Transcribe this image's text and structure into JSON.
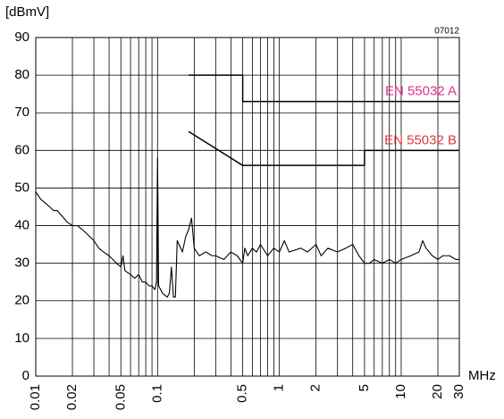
{
  "chart_data": {
    "type": "line",
    "xscale": "log",
    "y_label": "[dBmV]",
    "x_label": "MHz",
    "annotation": "07012",
    "xlim": [
      0.01,
      30
    ],
    "ylim": [
      0,
      90
    ],
    "yticks": [
      0,
      10,
      20,
      30,
      40,
      50,
      60,
      70,
      80,
      90
    ],
    "xticks": [
      0.01,
      0.02,
      0.05,
      0.1,
      0.5,
      1,
      2,
      5,
      10,
      20,
      30
    ],
    "xgrid": [
      0.01,
      0.02,
      0.03,
      0.04,
      0.05,
      0.06,
      0.07,
      0.08,
      0.09,
      0.1,
      0.2,
      0.3,
      0.4,
      0.5,
      0.6,
      0.7,
      0.8,
      0.9,
      1,
      2,
      3,
      4,
      5,
      6,
      7,
      8,
      9,
      10,
      20,
      30
    ],
    "grid": true,
    "series": [
      {
        "color": "#000000",
        "x": [
          0.01,
          0.011,
          0.012,
          0.013,
          0.014,
          0.015,
          0.017,
          0.018,
          0.02,
          0.022,
          0.024,
          0.026,
          0.03,
          0.033,
          0.036,
          0.04,
          0.043,
          0.046,
          0.05,
          0.052,
          0.054,
          0.06,
          0.065,
          0.07,
          0.075,
          0.08,
          0.085,
          0.09,
          0.095,
          0.098,
          0.1,
          0.102,
          0.11,
          0.12,
          0.125,
          0.13,
          0.135,
          0.14,
          0.145,
          0.16,
          0.17,
          0.18,
          0.19,
          0.2,
          0.22,
          0.25,
          0.28,
          0.3,
          0.35,
          0.4,
          0.45,
          0.5,
          0.52,
          0.55,
          0.6,
          0.65,
          0.7,
          0.8,
          0.9,
          1,
          1.1,
          1.2,
          1.5,
          1.7,
          2,
          2.2,
          2.5,
          3,
          3.5,
          4,
          4.5,
          5,
          5.5,
          6,
          7,
          8,
          9,
          10,
          12,
          14,
          15,
          16,
          18,
          20,
          22,
          25,
          28,
          30
        ],
        "values": [
          49,
          47,
          46,
          45,
          44,
          44,
          42,
          41,
          40,
          40,
          39,
          38,
          36,
          34,
          33,
          32,
          31,
          30,
          29,
          32,
          28,
          27,
          26,
          27,
          25,
          25,
          24,
          24,
          23,
          25,
          58,
          24,
          22,
          21,
          22,
          29,
          21,
          21,
          36,
          33,
          37,
          39,
          42,
          34,
          32,
          33,
          32,
          32,
          31,
          33,
          32,
          30,
          34,
          32,
          34,
          33,
          35,
          32,
          34,
          33,
          36,
          33,
          34,
          33,
          35,
          32,
          34,
          33,
          34,
          35,
          32,
          30,
          30,
          31,
          30,
          31,
          30,
          31,
          32,
          33,
          36,
          34,
          32,
          31,
          32,
          32,
          31,
          31
        ]
      },
      {
        "name": "EN 55032 A",
        "color": "#000000",
        "label_color": "#e0308a",
        "x": [
          0.18,
          0.5,
          0.5,
          30
        ],
        "values": [
          80,
          80,
          73,
          73
        ]
      },
      {
        "name": "EN 55032 B",
        "color": "#000000",
        "label_color": "#e23a3a",
        "x": [
          0.18,
          0.5,
          5,
          5,
          30
        ],
        "values": [
          65,
          56,
          56,
          60,
          60
        ]
      }
    ]
  }
}
